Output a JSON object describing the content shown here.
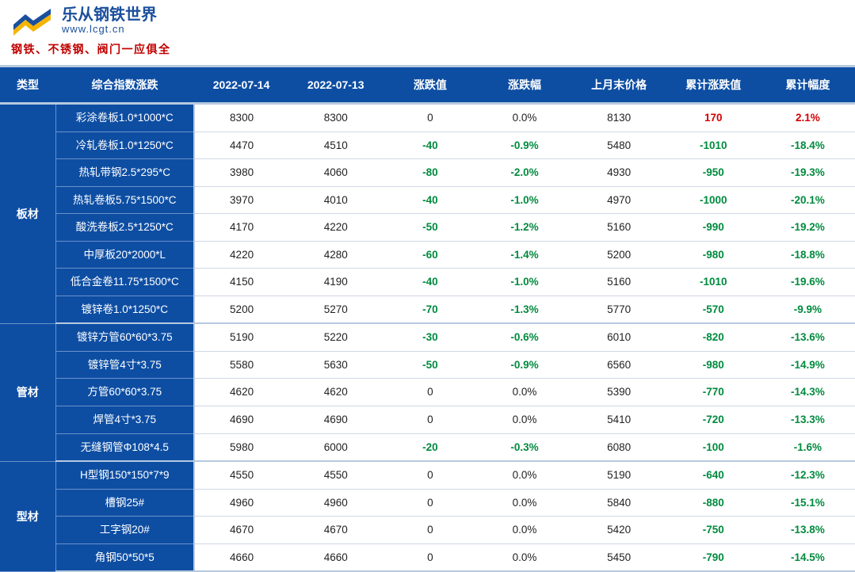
{
  "header": {
    "brand_title": "乐从钢铁世界",
    "brand_url": "www.lcgt.cn",
    "tagline": "钢铁、不锈钢、阀门一应俱全"
  },
  "colors": {
    "header_bg": "#0d4ea3",
    "pos": "#d40000",
    "neg": "#008a3e",
    "cell_bg": "#ffffff",
    "cell_text": "#222222",
    "border_light": "#d0d7e5",
    "border_heavy": "#b7c9e0"
  },
  "table": {
    "columns": [
      "类型",
      "综合指数涨跌",
      "2022-07-14",
      "2022-07-13",
      "涨跌值",
      "涨跌幅",
      "上月末价格",
      "累计涨跌值",
      "累计幅度"
    ],
    "groups": [
      {
        "category": "板材",
        "rows": [
          {
            "product": "彩涂卷板1.0*1000*C",
            "d1": "8300",
            "d2": "8300",
            "chg": "0",
            "chg_pct": "0.0%",
            "last": "8130",
            "cum": "170",
            "cum_pct": "2.1%",
            "cum_sign": 1
          },
          {
            "product": "冷轧卷板1.0*1250*C",
            "d1": "4470",
            "d2": "4510",
            "chg": "-40",
            "chg_pct": "-0.9%",
            "last": "5480",
            "cum": "-1010",
            "cum_pct": "-18.4%",
            "cum_sign": -1
          },
          {
            "product": "热轧带钢2.5*295*C",
            "d1": "3980",
            "d2": "4060",
            "chg": "-80",
            "chg_pct": "-2.0%",
            "last": "4930",
            "cum": "-950",
            "cum_pct": "-19.3%",
            "cum_sign": -1
          },
          {
            "product": "热轧卷板5.75*1500*C",
            "d1": "3970",
            "d2": "4010",
            "chg": "-40",
            "chg_pct": "-1.0%",
            "last": "4970",
            "cum": "-1000",
            "cum_pct": "-20.1%",
            "cum_sign": -1
          },
          {
            "product": "酸洗卷板2.5*1250*C",
            "d1": "4170",
            "d2": "4220",
            "chg": "-50",
            "chg_pct": "-1.2%",
            "last": "5160",
            "cum": "-990",
            "cum_pct": "-19.2%",
            "cum_sign": -1
          },
          {
            "product": "中厚板20*2000*L",
            "d1": "4220",
            "d2": "4280",
            "chg": "-60",
            "chg_pct": "-1.4%",
            "last": "5200",
            "cum": "-980",
            "cum_pct": "-18.8%",
            "cum_sign": -1
          },
          {
            "product": "低合金卷11.75*1500*C",
            "d1": "4150",
            "d2": "4190",
            "chg": "-40",
            "chg_pct": "-1.0%",
            "last": "5160",
            "cum": "-1010",
            "cum_pct": "-19.6%",
            "cum_sign": -1
          },
          {
            "product": "镀锌卷1.0*1250*C",
            "d1": "5200",
            "d2": "5270",
            "chg": "-70",
            "chg_pct": "-1.3%",
            "last": "5770",
            "cum": "-570",
            "cum_pct": "-9.9%",
            "cum_sign": -1
          }
        ]
      },
      {
        "category": "管材",
        "rows": [
          {
            "product": "镀锌方管60*60*3.75",
            "d1": "5190",
            "d2": "5220",
            "chg": "-30",
            "chg_pct": "-0.6%",
            "last": "6010",
            "cum": "-820",
            "cum_pct": "-13.6%",
            "cum_sign": -1
          },
          {
            "product": "镀锌管4寸*3.75",
            "d1": "5580",
            "d2": "5630",
            "chg": "-50",
            "chg_pct": "-0.9%",
            "last": "6560",
            "cum": "-980",
            "cum_pct": "-14.9%",
            "cum_sign": -1
          },
          {
            "product": "方管60*60*3.75",
            "d1": "4620",
            "d2": "4620",
            "chg": "0",
            "chg_pct": "0.0%",
            "last": "5390",
            "cum": "-770",
            "cum_pct": "-14.3%",
            "cum_sign": -1
          },
          {
            "product": "焊管4寸*3.75",
            "d1": "4690",
            "d2": "4690",
            "chg": "0",
            "chg_pct": "0.0%",
            "last": "5410",
            "cum": "-720",
            "cum_pct": "-13.3%",
            "cum_sign": -1
          },
          {
            "product": "无缝钢管Φ108*4.5",
            "d1": "5980",
            "d2": "6000",
            "chg": "-20",
            "chg_pct": "-0.3%",
            "last": "6080",
            "cum": "-100",
            "cum_pct": "-1.6%",
            "cum_sign": -1
          }
        ]
      },
      {
        "category": "型材",
        "rows": [
          {
            "product": "H型钢150*150*7*9",
            "d1": "4550",
            "d2": "4550",
            "chg": "0",
            "chg_pct": "0.0%",
            "last": "5190",
            "cum": "-640",
            "cum_pct": "-12.3%",
            "cum_sign": -1
          },
          {
            "product": "槽钢25#",
            "d1": "4960",
            "d2": "4960",
            "chg": "0",
            "chg_pct": "0.0%",
            "last": "5840",
            "cum": "-880",
            "cum_pct": "-15.1%",
            "cum_sign": -1
          },
          {
            "product": "工字钢20#",
            "d1": "4670",
            "d2": "4670",
            "chg": "0",
            "chg_pct": "0.0%",
            "last": "5420",
            "cum": "-750",
            "cum_pct": "-13.8%",
            "cum_sign": -1
          },
          {
            "product": "角钢50*50*5",
            "d1": "4660",
            "d2": "4660",
            "chg": "0",
            "chg_pct": "0.0%",
            "last": "5450",
            "cum": "-790",
            "cum_pct": "-14.5%",
            "cum_sign": -1
          }
        ]
      }
    ]
  }
}
